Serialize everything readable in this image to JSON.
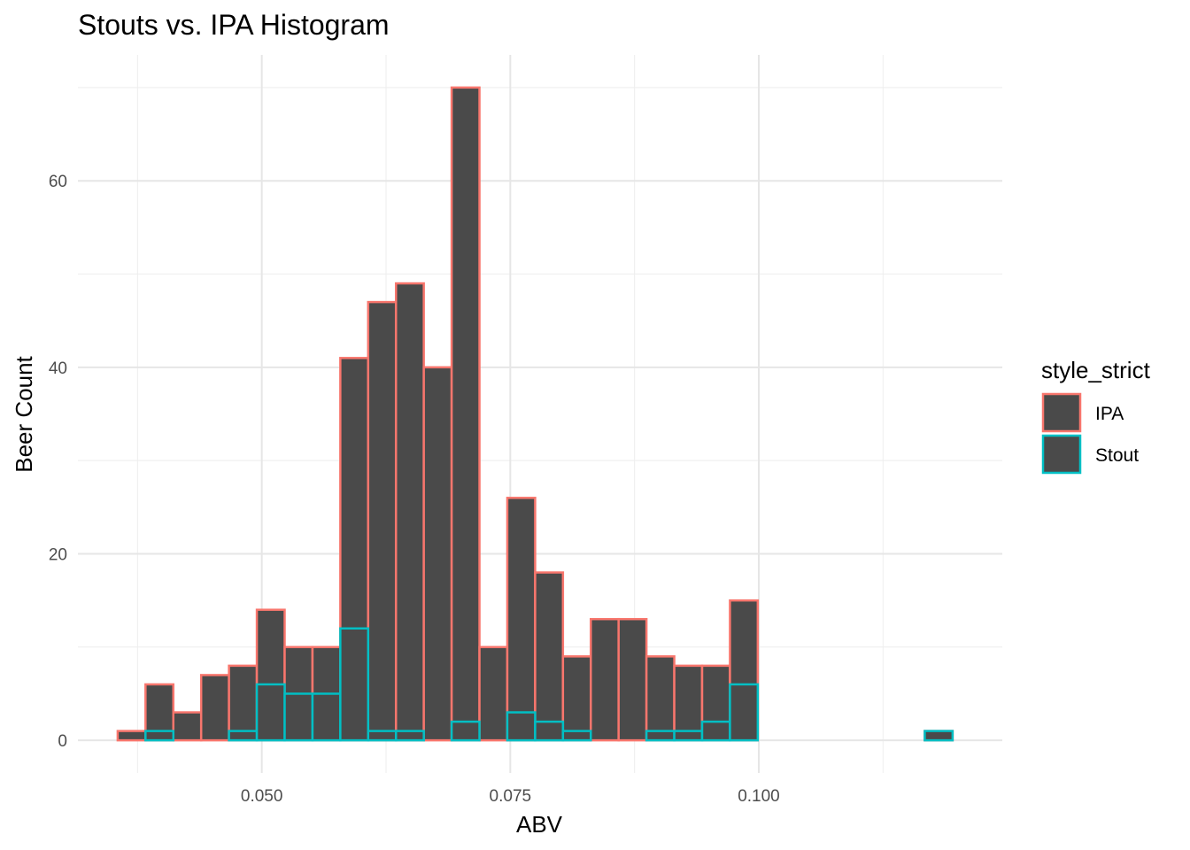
{
  "chart_data": {
    "type": "histogram",
    "title": "Stouts vs. IPA Histogram",
    "xlabel": "ABV",
    "ylabel": "Beer Count",
    "xlim": [
      0.0315,
      0.1245
    ],
    "ylim": [
      -3.5,
      73.5
    ],
    "x_ticks": [
      {
        "value": 0.05,
        "label": "0.050"
      },
      {
        "value": 0.075,
        "label": "0.075"
      },
      {
        "value": 0.1,
        "label": "0.100"
      }
    ],
    "y_ticks": [
      {
        "value": 0,
        "label": "0"
      },
      {
        "value": 20,
        "label": "20"
      },
      {
        "value": 40,
        "label": "40"
      },
      {
        "value": 60,
        "label": "60"
      }
    ],
    "grid": true,
    "legend": {
      "title": "style_strict",
      "position": "right",
      "entries": [
        {
          "label": "IPA",
          "color": "#F8766D"
        },
        {
          "label": "Stout",
          "color": "#00BFC4"
        }
      ]
    },
    "fill_color": "#4a4a4a",
    "bin_start": 0.0355,
    "bin_width": 0.0028,
    "series": [
      {
        "name": "IPA",
        "color": "#F8766D",
        "values": [
          1,
          6,
          3,
          7,
          8,
          14,
          10,
          10,
          41,
          47,
          49,
          40,
          70,
          10,
          26,
          18,
          9,
          13,
          13,
          9,
          8,
          8,
          15,
          0,
          0,
          0,
          0,
          0,
          0,
          1
        ]
      },
      {
        "name": "Stout",
        "color": "#00BFC4",
        "values": [
          0,
          1,
          0,
          0,
          1,
          6,
          5,
          5,
          12,
          1,
          1,
          0,
          2,
          0,
          3,
          2,
          1,
          0,
          0,
          1,
          1,
          2,
          6,
          0,
          0,
          0,
          0,
          0,
          0,
          1
        ]
      }
    ]
  }
}
